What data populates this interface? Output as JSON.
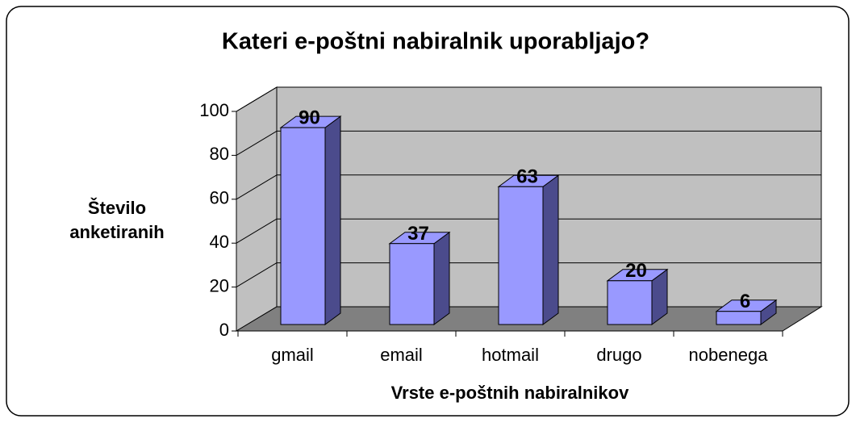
{
  "chart_data": {
    "type": "bar3d",
    "title": "Kateri e-poštni nabiralnik uporabljajo?",
    "x_label": "Vrste e-poštnih nabiralnikov",
    "y_label": "Število anketiranih",
    "categories": [
      "gmail",
      "email",
      "hotmail",
      "drugo",
      "nobenega"
    ],
    "values": [
      90,
      37,
      63,
      20,
      6
    ],
    "color": "#9999ff",
    "ylim": [
      0,
      100
    ],
    "yticks": [
      0,
      20,
      40,
      60,
      80,
      100
    ],
    "grid": true
  }
}
